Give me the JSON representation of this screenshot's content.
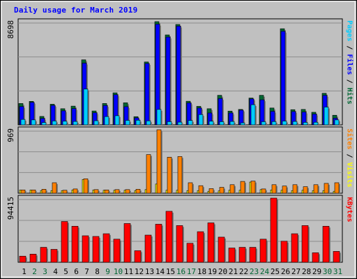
{
  "title": "Daily usage for March 2019",
  "colors": {
    "background": "#c0c0c0",
    "panel": "#c0c0c0",
    "grid": "#8c8c8c",
    "hits": "#006633",
    "files": "#0000ff",
    "pages": "#00ccff",
    "visits": "#ffff00",
    "sites": "#ff8000",
    "kbytes": "#ff0000"
  },
  "chart_data": [
    {
      "type": "bar",
      "name": "hits-files-pages",
      "categories": [
        "1",
        "2",
        "3",
        "4",
        "5",
        "6",
        "7",
        "8",
        "9",
        "10",
        "11",
        "12",
        "13",
        "14",
        "15",
        "16",
        "17",
        "18",
        "19",
        "20",
        "21",
        "22",
        "23",
        "24",
        "25",
        "26",
        "27",
        "28",
        "29",
        "30",
        "31"
      ],
      "weekend_days": [
        "2",
        "3",
        "9",
        "10",
        "16",
        "17",
        "23",
        "24",
        "30",
        "31"
      ],
      "ymax_label": "8698",
      "ylim": [
        0,
        8698
      ],
      "series": [
        {
          "name": "Hits",
          "values": [
            1800,
            1980,
            710,
            1740,
            1360,
            1580,
            5480,
            1170,
            1800,
            2700,
            1860,
            690,
            5300,
            8698,
            7580,
            8460,
            1990,
            1560,
            1360,
            2490,
            1160,
            1300,
            2260,
            2490,
            1420,
            8100,
            1280,
            1300,
            1060,
            2660,
            810
          ]
        },
        {
          "name": "Files",
          "values": [
            1540,
            1900,
            540,
            1640,
            1180,
            1370,
            5200,
            1020,
            1630,
            2540,
            1530,
            590,
            5170,
            8480,
            7400,
            8320,
            1850,
            1420,
            1000,
            2220,
            1000,
            1240,
            2180,
            2110,
            1140,
            7880,
            1120,
            1080,
            910,
            2480,
            560
          ]
        },
        {
          "name": "Pages",
          "values": [
            460,
            420,
            200,
            330,
            310,
            290,
            3020,
            350,
            700,
            770,
            380,
            390,
            340,
            1300,
            270,
            230,
            370,
            870,
            310,
            270,
            290,
            170,
            1700,
            270,
            280,
            320,
            290,
            210,
            220,
            1500,
            420
          ]
        }
      ],
      "ylabel_parts": [
        {
          "text": "Pages",
          "color": "#00ccff"
        },
        {
          "text": " / ",
          "color": "#000000"
        },
        {
          "text": "Files",
          "color": "#0000ff"
        },
        {
          "text": " / ",
          "color": "#000000"
        },
        {
          "text": "Hits",
          "color": "#006633"
        }
      ]
    },
    {
      "type": "bar",
      "name": "sites-visits",
      "ymax_label": "969",
      "ylim": [
        0,
        969
      ],
      "series": [
        {
          "name": "Visits",
          "values": [
            50,
            50,
            40,
            40,
            40,
            50,
            210,
            50,
            45,
            45,
            45,
            40,
            55,
            140,
            45,
            45,
            40,
            40,
            30,
            35,
            45,
            45,
            170,
            55,
            50,
            45,
            40,
            45,
            40,
            40,
            30
          ]
        },
        {
          "name": "Sites",
          "values": [
            50,
            50,
            60,
            160,
            45,
            65,
            220,
            55,
            50,
            55,
            55,
            60,
            590,
            969,
            550,
            560,
            160,
            115,
            70,
            90,
            130,
            180,
            185,
            65,
            130,
            110,
            130,
            100,
            130,
            150,
            160
          ]
        }
      ],
      "ylabel_parts": [
        {
          "text": "Sites",
          "color": "#ff8000"
        },
        {
          "text": " / ",
          "color": "#000000"
        },
        {
          "text": "Visits",
          "color": "#ffff00"
        }
      ]
    },
    {
      "type": "bar",
      "name": "kbytes",
      "ymax_label": "94415",
      "ylim": [
        0,
        94415
      ],
      "series": [
        {
          "name": "KBytes",
          "values": [
            9000,
            12000,
            22000,
            19000,
            60000,
            53000,
            39000,
            38000,
            42000,
            34000,
            57000,
            17000,
            40000,
            56000,
            75000,
            54000,
            28000,
            45000,
            58000,
            37000,
            21000,
            22000,
            22000,
            34000,
            94415,
            31000,
            42000,
            54000,
            14000,
            53000,
            16000
          ]
        }
      ],
      "ylabel_parts": [
        {
          "text": "KBytes",
          "color": "#ff0000"
        }
      ]
    }
  ]
}
